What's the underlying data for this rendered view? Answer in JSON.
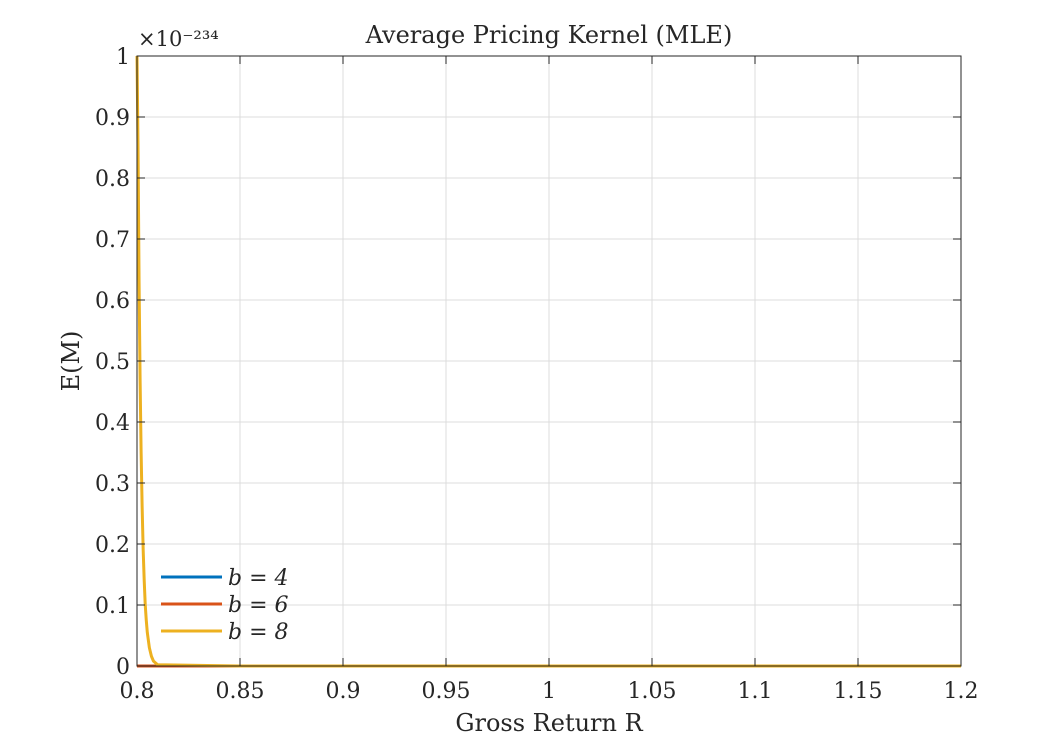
{
  "chart_data": {
    "type": "line",
    "title": "Average Pricing Kernel (MLE)",
    "xlabel": "Gross Return R",
    "ylabel": "E(M)",
    "xlim": [
      0.8,
      1.2
    ],
    "ylim": [
      0,
      1
    ],
    "y_exponent_label": "×10⁻²³⁴",
    "x_ticks": [
      "0.8",
      "0.85",
      "0.9",
      "0.95",
      "1",
      "1.05",
      "1.1",
      "1.15",
      "1.2"
    ],
    "y_ticks": [
      "0",
      "0.1",
      "0.2",
      "0.3",
      "0.4",
      "0.5",
      "0.6",
      "0.7",
      "0.8",
      "0.9",
      "1"
    ],
    "grid": true,
    "legend_position": "bottom-left",
    "series": [
      {
        "name": "b = 4",
        "color": "#0072BD",
        "x": [
          0.8,
          0.802,
          0.804,
          0.806,
          0.808,
          0.81,
          0.85,
          0.9,
          1.0,
          1.1,
          1.2
        ],
        "y": [
          0,
          0,
          0,
          0,
          0,
          0,
          0,
          0,
          0,
          0,
          0
        ]
      },
      {
        "name": "b = 6",
        "color": "#D95319",
        "x": [
          0.8,
          0.802,
          0.804,
          0.806,
          0.808,
          0.81,
          0.85,
          0.9,
          1.0,
          1.1,
          1.2
        ],
        "y": [
          0,
          0,
          0,
          0,
          0,
          0,
          0,
          0,
          0,
          0,
          0
        ]
      },
      {
        "name": "b = 8",
        "color": "#EDB120",
        "x": [
          0.8,
          0.8005,
          0.801,
          0.8015,
          0.802,
          0.8025,
          0.803,
          0.8035,
          0.804,
          0.8045,
          0.805,
          0.806,
          0.807,
          0.808,
          0.81,
          0.85,
          0.9,
          1.0,
          1.1,
          1.2
        ],
        "y": [
          1.0,
          0.85,
          0.63,
          0.47,
          0.35,
          0.26,
          0.19,
          0.14,
          0.1,
          0.075,
          0.055,
          0.03,
          0.016,
          0.008,
          0.002,
          0,
          0,
          0,
          0,
          0
        ]
      }
    ]
  }
}
